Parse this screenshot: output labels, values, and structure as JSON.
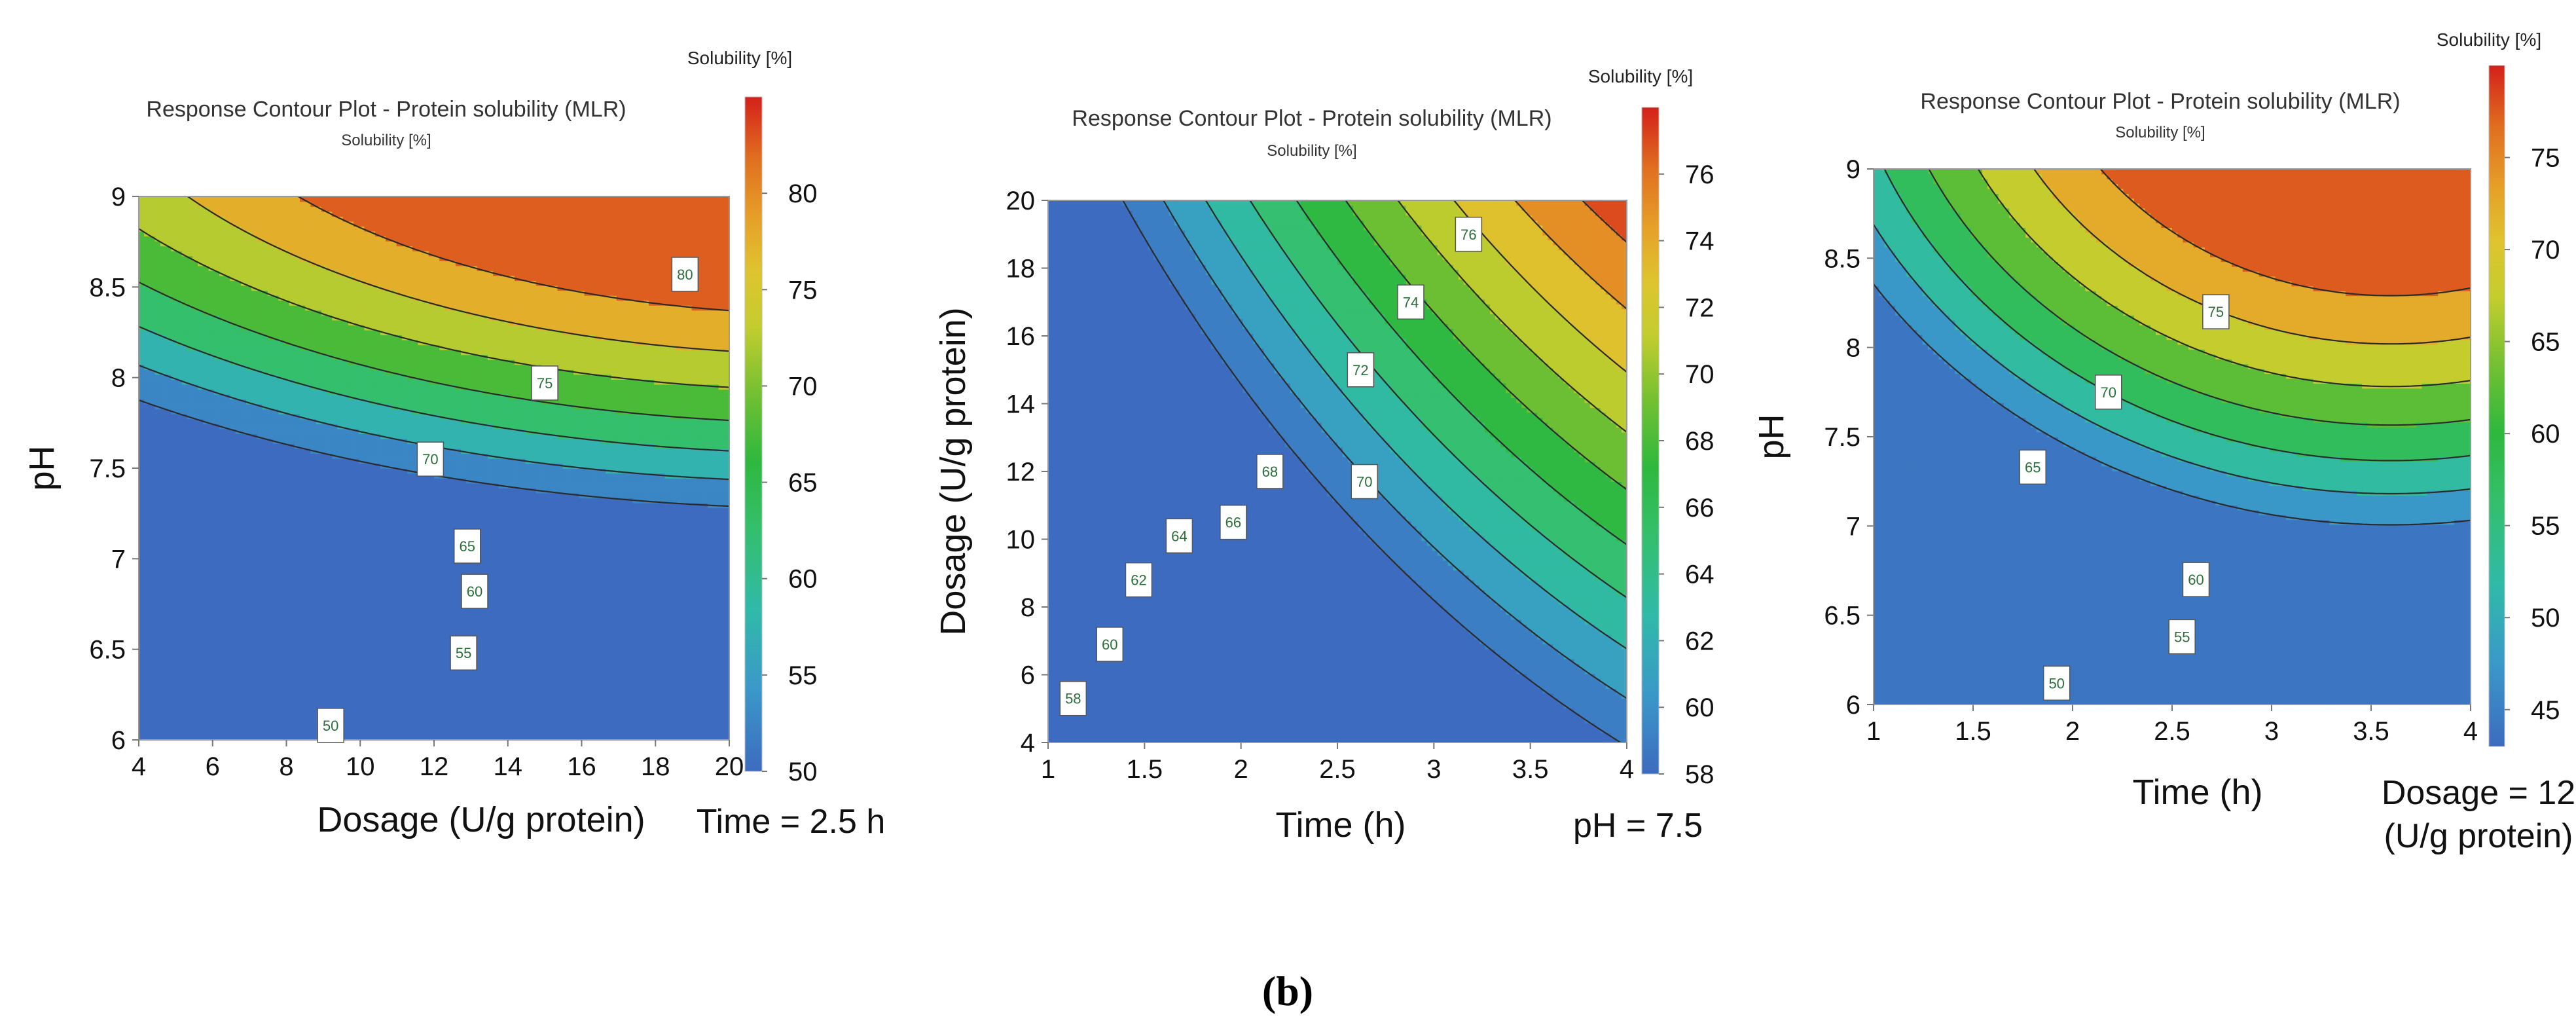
{
  "figure_label": "(b)",
  "chart_data": [
    {
      "type": "contour",
      "title": "Response Contour Plot - Protein solubility (MLR)",
      "subtitle": "Solubility [%]",
      "colorbar_title": "Solubility [%]",
      "xlabel": "Dosage (U/g protein)",
      "ylabel": "pH",
      "fixed_condition": "Time = 2.5 h",
      "xlim": [
        4,
        20
      ],
      "ylim": [
        6,
        9
      ],
      "x_ticks": [
        "4",
        "6",
        "8",
        "10",
        "12",
        "14",
        "16",
        "18",
        "20"
      ],
      "y_ticks": [
        "6",
        "6.5",
        "7",
        "7.5",
        "8",
        "8.5",
        "9"
      ],
      "colorbar_range": [
        50,
        85
      ],
      "colorbar_ticks": [
        "50",
        "55",
        "60",
        "65",
        "70",
        "75",
        "80"
      ],
      "contour_levels": [
        50,
        55,
        60,
        65,
        70,
        75,
        80
      ],
      "contour_labels": [
        {
          "text": "50",
          "x": 9.2,
          "y": 6.08
        },
        {
          "text": "55",
          "x": 12.8,
          "y": 6.48
        },
        {
          "text": "60",
          "x": 13.1,
          "y": 6.82
        },
        {
          "text": "65",
          "x": 12.9,
          "y": 7.07
        },
        {
          "text": "70",
          "x": 11.9,
          "y": 7.55
        },
        {
          "text": "75",
          "x": 15.0,
          "y": 7.97
        },
        {
          "text": "80",
          "x": 18.8,
          "y": 8.57
        }
      ]
    },
    {
      "type": "contour",
      "title": "Response Contour Plot - Protein solubility (MLR)",
      "subtitle": "Solubility [%]",
      "colorbar_title": "Solubility [%]",
      "xlabel": "Time (h)",
      "ylabel": "Dosage (U/g protein)",
      "fixed_condition": "pH = 7.5",
      "xlim": [
        1,
        4
      ],
      "ylim": [
        4,
        20
      ],
      "x_ticks": [
        "1",
        "1.5",
        "2",
        "2.5",
        "3",
        "3.5",
        "4"
      ],
      "y_ticks": [
        "4",
        "6",
        "8",
        "10",
        "12",
        "14",
        "16",
        "18",
        "20"
      ],
      "colorbar_range": [
        58,
        78
      ],
      "colorbar_ticks": [
        "58",
        "60",
        "62",
        "64",
        "66",
        "68",
        "70",
        "72",
        "74",
        "76"
      ],
      "contour_levels": [
        58,
        60,
        62,
        64,
        66,
        68,
        70,
        72,
        74,
        76
      ],
      "contour_labels": [
        {
          "text": "58",
          "x": 1.13,
          "y": 5.3
        },
        {
          "text": "60",
          "x": 1.32,
          "y": 6.9
        },
        {
          "text": "62",
          "x": 1.47,
          "y": 8.8
        },
        {
          "text": "64",
          "x": 1.68,
          "y": 10.1
        },
        {
          "text": "66",
          "x": 1.96,
          "y": 10.5
        },
        {
          "text": "68",
          "x": 2.15,
          "y": 12.0
        },
        {
          "text": "70",
          "x": 2.64,
          "y": 11.7
        },
        {
          "text": "72",
          "x": 2.62,
          "y": 15.0
        },
        {
          "text": "74",
          "x": 2.88,
          "y": 17.0
        },
        {
          "text": "76",
          "x": 3.18,
          "y": 19.0
        }
      ]
    },
    {
      "type": "contour",
      "title": "Response Contour Plot - Protein solubility (MLR)",
      "subtitle": "Solubility [%]",
      "colorbar_title": "Solubility [%]",
      "xlabel": "Time (h)",
      "ylabel": "pH",
      "fixed_condition": "Dosage = 12 (U/g protein)",
      "fixed_condition_lines": [
        "Dosage = 12",
        "(U/g protein)"
      ],
      "xlim": [
        1,
        4
      ],
      "ylim": [
        6,
        9
      ],
      "x_ticks": [
        "1",
        "1.5",
        "2",
        "2.5",
        "3",
        "3.5",
        "4"
      ],
      "y_ticks": [
        "6",
        "6.5",
        "7",
        "7.5",
        "8",
        "8.5",
        "9"
      ],
      "colorbar_range": [
        43,
        80
      ],
      "colorbar_ticks": [
        "45",
        "50",
        "55",
        "60",
        "65",
        "70",
        "75"
      ],
      "contour_levels": [
        45,
        50,
        55,
        60,
        65,
        70,
        75
      ],
      "contour_labels": [
        {
          "text": "50",
          "x": 1.92,
          "y": 6.12
        },
        {
          "text": "55",
          "x": 2.55,
          "y": 6.38
        },
        {
          "text": "60",
          "x": 2.62,
          "y": 6.7
        },
        {
          "text": "65",
          "x": 1.8,
          "y": 7.33
        },
        {
          "text": "70",
          "x": 2.18,
          "y": 7.75
        },
        {
          "text": "75",
          "x": 2.72,
          "y": 8.2
        }
      ]
    }
  ]
}
